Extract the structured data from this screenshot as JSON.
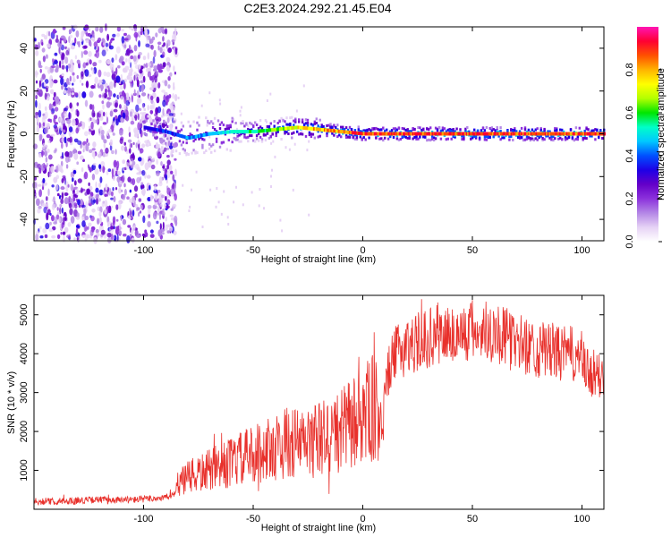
{
  "title": "C2E3.2024.292.21.45.E04",
  "chart_data": [
    {
      "type": "heatmap",
      "xlabel": "Height of straight line (km)",
      "ylabel": "Frequency (Hz)",
      "xlim": [
        -150,
        110
      ],
      "ylim": [
        -50,
        50
      ],
      "xticks": [
        -100,
        -50,
        0,
        50,
        100
      ],
      "yticks": [
        -40,
        -20,
        0,
        20,
        40
      ],
      "colorbar": {
        "label": "Normalized spectral amplitude",
        "range": [
          0.0,
          1.0
        ],
        "ticks": [
          0.0,
          0.2,
          0.4,
          0.6,
          0.8
        ],
        "colormap": [
          "#ffffff",
          "#e6d2f5",
          "#b487e6",
          "#8c32dc",
          "#6400c8",
          "#1e00e6",
          "#0050ff",
          "#00c8ff",
          "#00ffc8",
          "#00e600",
          "#b4ff00",
          "#ffff00",
          "#ffb400",
          "#ff5000",
          "#ff0032",
          "#ff14b4"
        ]
      },
      "noise_band_x": [
        -150,
        -85
      ],
      "ridge": {
        "x": [
          -100,
          -90,
          -80,
          -70,
          -60,
          -50,
          -40,
          -30,
          -20,
          -10,
          0,
          10,
          20,
          30,
          40,
          50,
          60,
          70,
          80,
          90,
          100,
          110
        ],
        "y": [
          3,
          1,
          -2,
          0,
          1,
          1,
          2,
          3,
          2,
          1,
          0,
          0,
          0,
          0,
          0,
          0,
          0,
          0,
          0,
          0,
          0,
          0
        ],
        "amplitude": [
          0.35,
          0.4,
          0.45,
          0.5,
          0.55,
          0.6,
          0.7,
          0.8,
          0.85,
          0.9,
          0.95,
          0.95,
          0.95,
          0.95,
          0.95,
          0.95,
          0.95,
          0.95,
          0.95,
          0.95,
          0.95,
          0.95
        ]
      }
    },
    {
      "type": "line",
      "xlabel": "Height of straight line (km)",
      "ylabel": "SNR (10 * v/v)",
      "xlim": [
        -150,
        110
      ],
      "ylim": [
        0,
        5500
      ],
      "xticks": [
        -100,
        -50,
        0,
        50,
        100
      ],
      "yticks": [
        1000,
        2000,
        3000,
        4000,
        5000
      ],
      "color": "#e8302b",
      "series": [
        {
          "x": [
            -150,
            -140,
            -130,
            -120,
            -110,
            -100,
            -90,
            -86,
            -85,
            -80,
            -75,
            -70,
            -65,
            -60,
            -55,
            -50,
            -45,
            -40,
            -35,
            -30,
            -25,
            -20,
            -15,
            -10,
            -5,
            0,
            5,
            8,
            10,
            12,
            15,
            20,
            25,
            30,
            35,
            40,
            45,
            50,
            55,
            60,
            65,
            70,
            75,
            80,
            85,
            90,
            95,
            100,
            101,
            105,
            110
          ],
          "y": [
            200,
            200,
            220,
            250,
            230,
            260,
            300,
            400,
            600,
            800,
            900,
            1000,
            1100,
            1200,
            1300,
            1400,
            1500,
            1600,
            1700,
            1700,
            1700,
            1800,
            1900,
            2000,
            2200,
            2400,
            2600,
            2200,
            3100,
            3600,
            4000,
            4200,
            4300,
            4400,
            4500,
            4500,
            4500,
            4600,
            4600,
            4600,
            4400,
            4300,
            4200,
            4100,
            4100,
            4000,
            4000,
            3900,
            3600,
            3400,
            3400
          ]
        }
      ]
    }
  ]
}
